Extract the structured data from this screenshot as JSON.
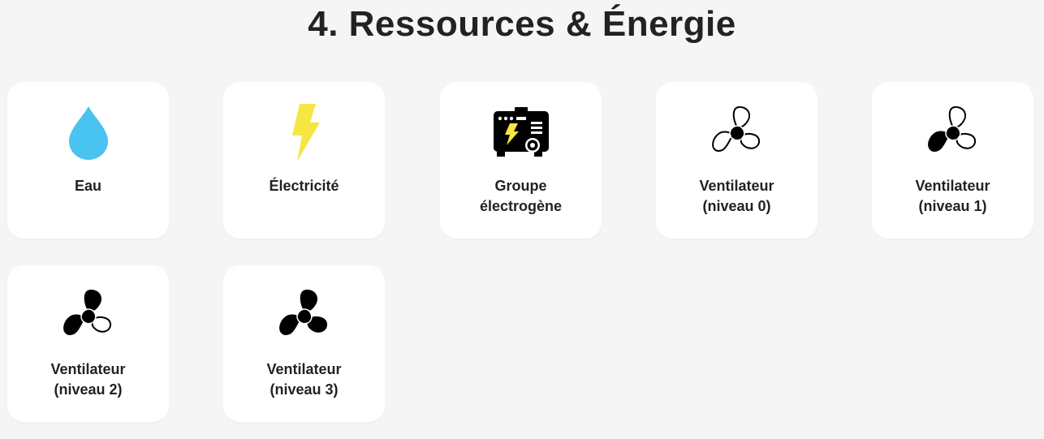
{
  "page": {
    "title": "4. Ressources & Énergie"
  },
  "colors": {
    "water": "#49c3f0",
    "electricity": "#f5e642",
    "black": "#000000"
  },
  "items": [
    {
      "line1": "Eau",
      "line2": "",
      "icon": "water-drop-icon"
    },
    {
      "line1": "Électricité",
      "line2": "",
      "icon": "lightning-icon"
    },
    {
      "line1": "Groupe",
      "line2": "électrogène",
      "icon": "generator-icon"
    },
    {
      "line1": "Ventilateur",
      "line2": "(niveau 0)",
      "icon": "fan-level-0-icon"
    },
    {
      "line1": "Ventilateur",
      "line2": "(niveau 1)",
      "icon": "fan-level-1-icon"
    },
    {
      "line1": "Ventilateur",
      "line2": "(niveau 2)",
      "icon": "fan-level-2-icon"
    },
    {
      "line1": "Ventilateur",
      "line2": "(niveau 3)",
      "icon": "fan-level-3-icon"
    }
  ]
}
